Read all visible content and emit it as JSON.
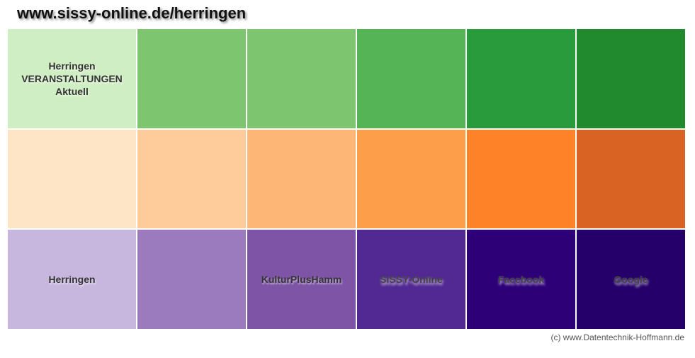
{
  "title": "www.sissy-online.de/herringen",
  "rows": [
    {
      "cells": [
        {
          "label": "Herringen\nVERANSTALTUNGEN\nAktuell",
          "color": "#d0eec3"
        },
        {
          "label": "",
          "color": "#7dc56f"
        },
        {
          "label": "",
          "color": "#7dc56f"
        },
        {
          "label": "",
          "color": "#55b456"
        },
        {
          "label": "",
          "color": "#2a9b3c"
        },
        {
          "label": "",
          "color": "#228a2e"
        }
      ]
    },
    {
      "cells": [
        {
          "label": "",
          "color": "#fee5c6"
        },
        {
          "label": "",
          "color": "#fdcc9a"
        },
        {
          "label": "",
          "color": "#fdb675"
        },
        {
          "label": "",
          "color": "#fd9e4a"
        },
        {
          "label": "",
          "color": "#fd8228"
        },
        {
          "label": "",
          "color": "#d86322"
        }
      ]
    },
    {
      "cells": [
        {
          "label": "Herringen",
          "color": "#c7b7df"
        },
        {
          "label": "",
          "color": "#9b7bbd"
        },
        {
          "label": "KulturPlusHamm",
          "color": "#7d54a6"
        },
        {
          "label": "SISSY-Online",
          "color": "#522992"
        },
        {
          "label": "Facebook",
          "color": "#2d0077"
        },
        {
          "label": "Google",
          "color": "#26006a"
        }
      ]
    }
  ],
  "footer": "(c) www.Datentechnik-Hoffmann.de"
}
